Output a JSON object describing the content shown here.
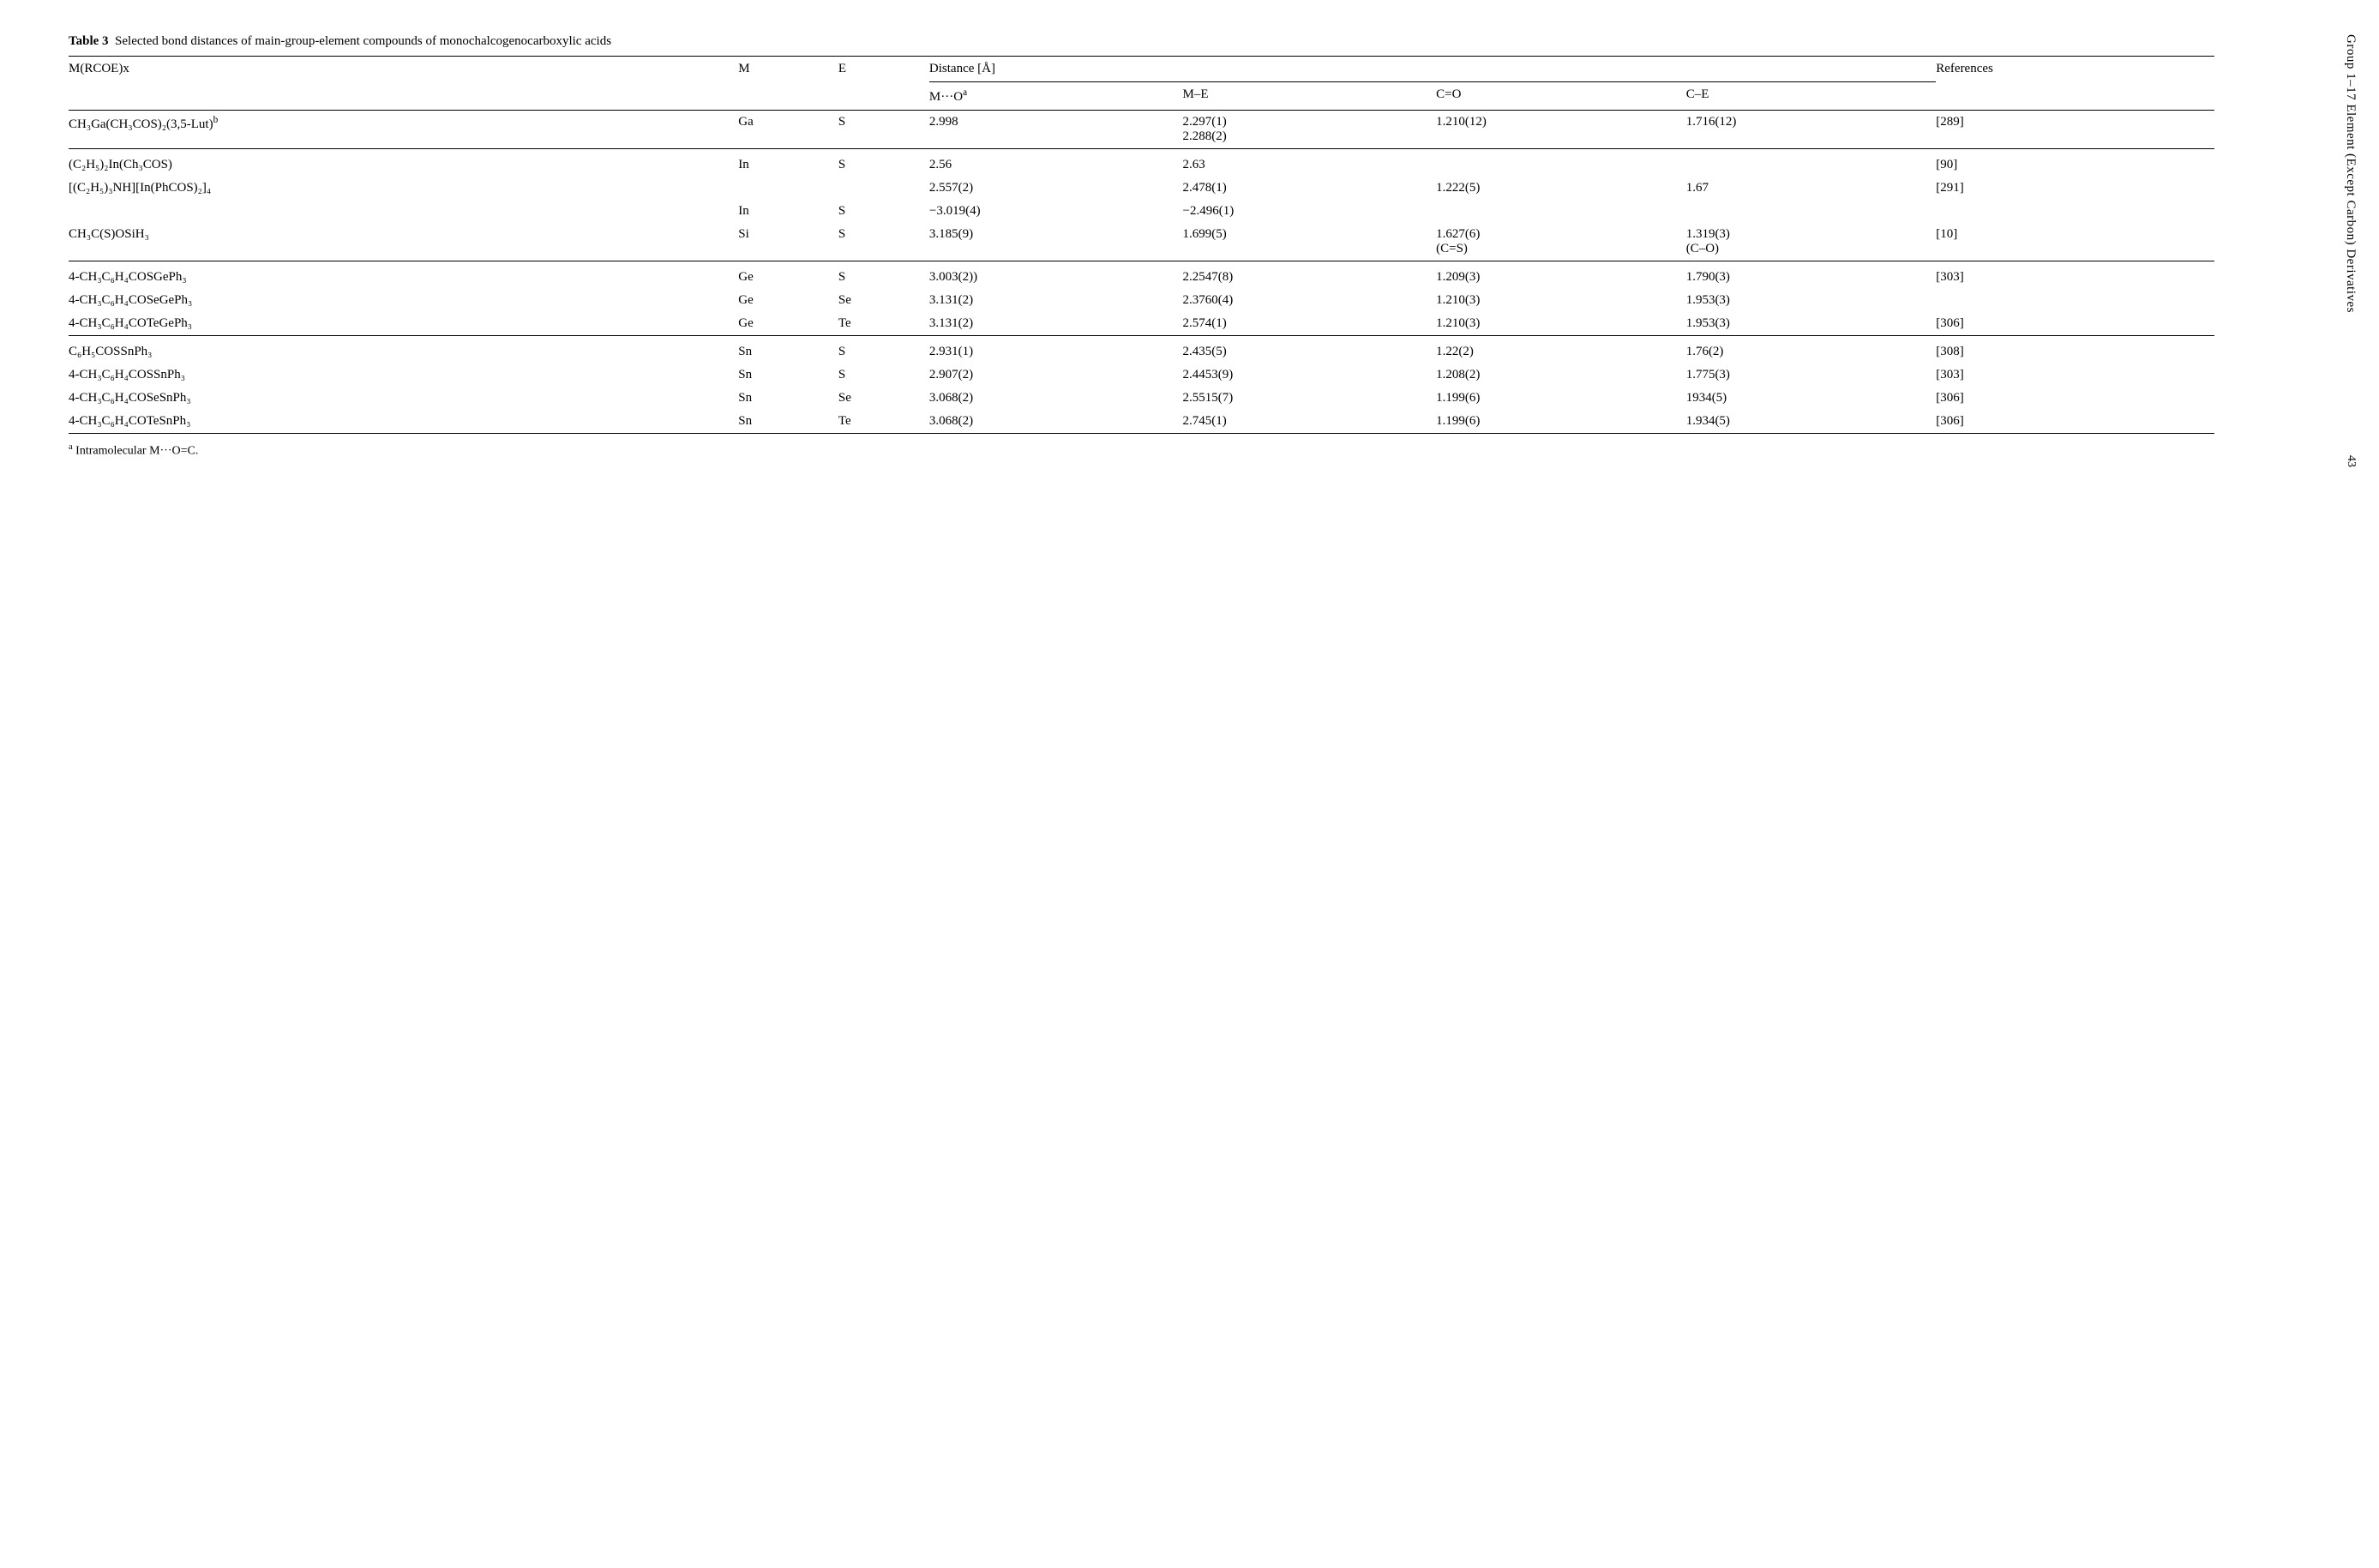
{
  "sideHeader": "Group 1–17 Element (Except Carbon) Derivatives",
  "pageNumber": "43",
  "caption": {
    "label": "Table 3",
    "text": "Selected bond distances of main-group-element compounds of monochalcogenocarboxylic acids"
  },
  "headers": {
    "col1": "M(RCOE)x",
    "col2": "M",
    "col3": "E",
    "distance": "Distance [Å]",
    "refs": "References",
    "sub1": "M···O",
    "sub1_sup": "a",
    "sub2": "M–E",
    "sub3": "C=O",
    "sub4": "C–E"
  },
  "rows": [
    {
      "c1": "CH₃Ga(CH₃COS)₂(3,5-Lut)",
      "c1_sup": "b",
      "m": "Ga",
      "e": "S",
      "mo": "2.998",
      "me": "2.297(1)",
      "me2": "2.288(2)",
      "co": "1.210(12)",
      "ce": "1.716(12)",
      "ref": "[289]"
    },
    {
      "c1": "(C₂H₅)₂In(Ch₃COS)",
      "m": "In",
      "e": "S",
      "mo": "2.56",
      "me": "2.63",
      "co": "",
      "ce": "",
      "ref": "[90]",
      "gap": true
    },
    {
      "c1": "[(C₂H₅)₃NH][In(PhCOS)₂]₄",
      "m": "",
      "e": "",
      "mo": "2.557(2)",
      "me": "2.478(1)",
      "co": "1.222(5)",
      "ce": "1.67",
      "ref": "[291]"
    },
    {
      "c1": "",
      "m": "In",
      "e": "S",
      "mo": "−3.019(4)",
      "me": "−2.496(1)",
      "co": "",
      "ce": "",
      "ref": ""
    },
    {
      "c1": "CH₃C(S)OSiH₃",
      "m": "Si",
      "e": "S",
      "mo": "3.185(9)",
      "me": "1.699(5)",
      "co": "1.627(6)",
      "co2": "(C=S)",
      "ce": "1.319(3)",
      "ce2": "(C–O)",
      "ref": "[10]"
    },
    {
      "c1": "4-CH₃C₆H₄COSGePh₃",
      "m": "Ge",
      "e": "S",
      "mo": "3.003(2))",
      "me": "2.2547(8)",
      "co": "1.209(3)",
      "ce": "1.790(3)",
      "ref": "[303]",
      "gap": true
    },
    {
      "c1": "4-CH₃C₆H₄COSeGePh₃",
      "m": "Ge",
      "e": "Se",
      "mo": "3.131(2)",
      "me": "2.3760(4)",
      "co": "1.210(3)",
      "ce": "1.953(3)",
      "ref": ""
    },
    {
      "c1": "4-CH₃C₆H₄COTeGePh₃",
      "m": "Ge",
      "e": "Te",
      "mo": "3.131(2)",
      "me": "2.574(1)",
      "co": "1.210(3)",
      "ce": "1.953(3)",
      "ref": "[306]"
    },
    {
      "c1": "C₆H₅COSSnPh₃",
      "m": "Sn",
      "e": "S",
      "mo": "2.931(1)",
      "me": "2.435(5)",
      "co": "1.22(2)",
      "ce": "1.76(2)",
      "ref": "[308]",
      "gap": true
    },
    {
      "c1": "4-CH₃C₆H₄COSSnPh₃",
      "m": "Sn",
      "e": "S",
      "mo": "2.907(2)",
      "me": "2.4453(9)",
      "co": "1.208(2)",
      "ce": "1.775(3)",
      "ref": "[303]"
    },
    {
      "c1": "4-CH₃C₆H₄COSeSnPh₃",
      "m": "Sn",
      "e": "Se",
      "mo": "3.068(2)",
      "me": "2.5515(7)",
      "co": "1.199(6)",
      "ce": "1934(5)",
      "ref": "[306]"
    },
    {
      "c1": "4-CH₃C₆H₄COTeSnPh₃",
      "m": "Sn",
      "e": "Te",
      "mo": "3.068(2)",
      "me": "2.745(1)",
      "co": "1.199(6)",
      "ce": "1.934(5)",
      "ref": "[306]"
    }
  ],
  "footnote": {
    "sup": "a",
    "text": " Intramolecular M···O=C."
  }
}
